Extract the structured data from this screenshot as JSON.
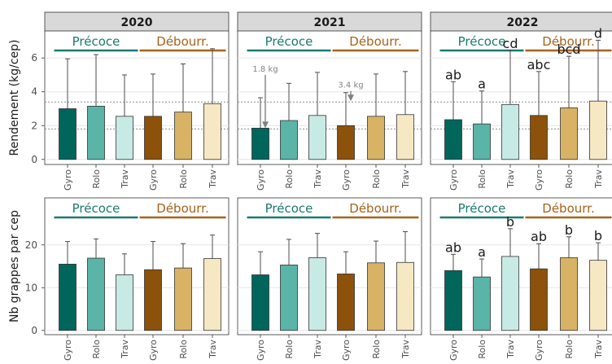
{
  "colors": {
    "Gyro_precoce": "#00665c",
    "Rolo_precoce": "#5ab4a8",
    "Trav_precoce": "#c8eae5",
    "Gyro_debourr": "#8c510a",
    "Rolo_debourr": "#d8b365",
    "Trav_debourr": "#f6e8c3",
    "precoce_text": "#1b7a6e",
    "debourr_text": "#a8621a"
  },
  "chart_data": [
    {
      "type": "bar",
      "ylabel": "Rendement (kg/cep)",
      "ylim": [
        -0.3,
        7.6
      ],
      "yticks": [
        0,
        2,
        4,
        6
      ],
      "reference_lines": [
        1.8,
        3.4
      ],
      "group_labels": [
        "Précoce",
        "Débourr."
      ],
      "categories": [
        "Gyro",
        "Rolo",
        "Trav",
        "Gyro",
        "Rolo",
        "Trav"
      ],
      "panels": [
        {
          "title": "2020",
          "values": [
            3.0,
            3.15,
            2.55,
            2.55,
            2.8,
            3.3
          ],
          "error_upper": [
            5.95,
            6.2,
            5.0,
            5.05,
            5.65,
            6.55
          ],
          "letters": []
        },
        {
          "title": "2021",
          "values": [
            1.85,
            2.3,
            2.6,
            2.0,
            2.55,
            2.65
          ],
          "error_upper": [
            3.65,
            4.5,
            5.15,
            3.95,
            5.05,
            5.2
          ],
          "letters": [],
          "annotations": [
            {
              "label": "1.8 kg",
              "bar": 0
            },
            {
              "label": "3.4 kg",
              "bar": 3
            }
          ]
        },
        {
          "title": "2022",
          "values": [
            2.35,
            2.1,
            3.25,
            2.6,
            3.05,
            3.45
          ],
          "error_upper": [
            4.6,
            4.05,
            6.45,
            5.2,
            6.1,
            7.05
          ],
          "letters": [
            "ab",
            "a",
            "cd",
            "abc",
            "bcd",
            "d"
          ]
        }
      ]
    },
    {
      "type": "bar",
      "ylabel": "Nb grappes par cep",
      "ylim": [
        -1,
        31
      ],
      "yticks": [
        0,
        10,
        20
      ],
      "group_labels": [
        "Précoce",
        "Débourr."
      ],
      "categories": [
        "Gyro",
        "Rolo",
        "Trav",
        "Gyro",
        "Rolo",
        "Trav"
      ],
      "panels": [
        {
          "values": [
            15.5,
            16.9,
            13.0,
            14.2,
            14.6,
            16.8
          ],
          "error_upper": [
            20.8,
            21.4,
            17.9,
            20.8,
            20.3,
            22.3
          ],
          "letters": []
        },
        {
          "values": [
            13.0,
            15.3,
            17.0,
            13.2,
            15.8,
            15.9
          ],
          "error_upper": [
            18.4,
            21.3,
            22.7,
            18.4,
            20.9,
            23.1
          ],
          "letters": []
        },
        {
          "values": [
            14.0,
            12.5,
            17.3,
            14.4,
            17.0,
            16.4
          ],
          "error_upper": [
            17.8,
            16.7,
            23.8,
            20.3,
            21.9,
            20.5
          ],
          "letters": [
            "ab",
            "a",
            "b",
            "ab",
            "b",
            "b"
          ]
        }
      ]
    }
  ]
}
